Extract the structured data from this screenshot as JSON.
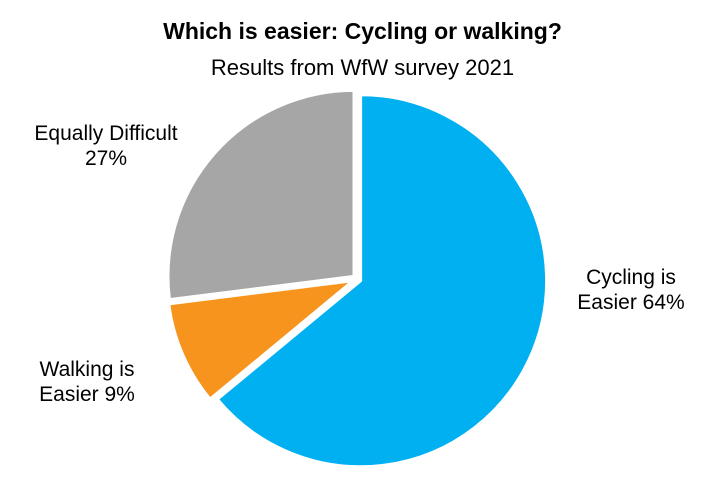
{
  "chart_data": {
    "type": "pie",
    "title": "Which is easier: Cycling or walking?",
    "subtitle": "Results from WfW survey 2021",
    "slices": [
      {
        "label_lines": [
          "Cycling is",
          "Easier 64%"
        ],
        "value": 64,
        "color": "#00B0F0"
      },
      {
        "label_lines": [
          "Walking is",
          "Easier 9%"
        ],
        "value": 9,
        "color": "#F7941D"
      },
      {
        "label_lines": [
          "Equally Difficult",
          "27%"
        ],
        "value": 27,
        "color": "#A6A6A6"
      }
    ],
    "start_angle_deg": 0,
    "direction": "clockwise",
    "exploded": true
  }
}
